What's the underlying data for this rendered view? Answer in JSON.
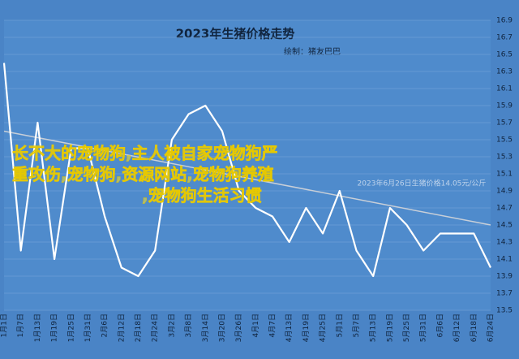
{
  "chart_data": {
    "type": "line",
    "title": "2023年生猪价格走势",
    "subtitle": "绘制：猪友巴巴",
    "annotation": "2023年6月26日生猪价格14.05元/公斤",
    "overlay_text": [
      "长不大的宠物狗,主人被自家宠物狗严",
      "重攻伤,宠物狗,资源网站,宠物狗养殖",
      ",宠物狗生活习惯"
    ],
    "categories": [
      "1月1日",
      "1月7日",
      "1月13日",
      "1月19日",
      "1月25日",
      "1月31日",
      "2月6日",
      "2月12日",
      "2月18日",
      "2月24日",
      "3月2日",
      "3月8日",
      "3月14日",
      "3月20日",
      "3月26日",
      "4月1日",
      "4月7日",
      "4月13日",
      "4月19日",
      "4月25日",
      "5月1日",
      "5月7日",
      "5月13日",
      "5月19日",
      "5月25日",
      "5月31日",
      "6月6日",
      "6月12日",
      "6月18日",
      "6月24日"
    ],
    "series": [
      {
        "color": "#ffffff",
        "values": [
          16.4,
          14.2,
          15.7,
          14.1,
          15.4,
          15.4,
          14.6,
          14.0,
          13.9,
          14.2,
          15.5,
          15.8,
          15.9,
          15.6,
          14.9,
          14.7,
          14.6,
          14.3,
          14.7,
          14.4,
          14.9,
          14.2,
          13.9,
          14.7,
          14.5,
          14.2,
          14.4,
          14.4,
          14.4,
          14.0
        ]
      }
    ],
    "trendline": {
      "color": "#c8cfd8",
      "values": [
        15.6,
        14.5
      ]
    },
    "ylim": [
      13.5,
      16.9
    ],
    "yticks": [
      13.5,
      13.7,
      13.9,
      14.1,
      14.3,
      14.5,
      14.7,
      14.9,
      15.1,
      15.3,
      15.5,
      15.7,
      15.9,
      16.1,
      16.3,
      16.5,
      16.7,
      16.9
    ],
    "grid": true
  }
}
